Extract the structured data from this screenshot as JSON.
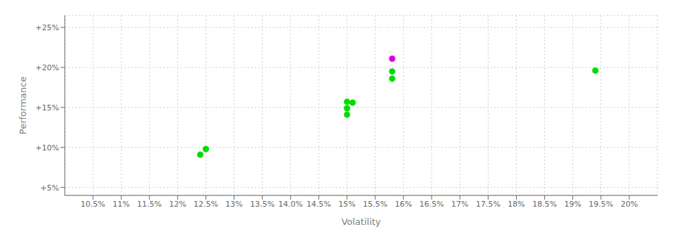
{
  "chart_data": {
    "type": "scatter",
    "xlabel": "Volatility",
    "ylabel": "Performance",
    "xlim": [
      0.1,
      0.205
    ],
    "ylim": [
      0.04,
      0.265
    ],
    "xticks": [
      {
        "value": 0.105,
        "label": "10.5%"
      },
      {
        "value": 0.11,
        "label": "11%"
      },
      {
        "value": 0.115,
        "label": "11.5%"
      },
      {
        "value": 0.12,
        "label": "12%"
      },
      {
        "value": 0.125,
        "label": "12.5%"
      },
      {
        "value": 0.13,
        "label": "13%"
      },
      {
        "value": 0.135,
        "label": "13.5%"
      },
      {
        "value": 0.14,
        "label": "14.0%"
      },
      {
        "value": 0.145,
        "label": "14.5%"
      },
      {
        "value": 0.15,
        "label": "15%"
      },
      {
        "value": 0.155,
        "label": "15.5%"
      },
      {
        "value": 0.16,
        "label": "16%"
      },
      {
        "value": 0.165,
        "label": "16.5%"
      },
      {
        "value": 0.17,
        "label": "17%"
      },
      {
        "value": 0.175,
        "label": "17.5%"
      },
      {
        "value": 0.18,
        "label": "18%"
      },
      {
        "value": 0.185,
        "label": "18.5%"
      },
      {
        "value": 0.19,
        "label": "19%"
      },
      {
        "value": 0.195,
        "label": "19.5%"
      },
      {
        "value": 0.2,
        "label": "20%"
      }
    ],
    "yticks": [
      {
        "value": 0.05,
        "label": "+5%"
      },
      {
        "value": 0.1,
        "label": "+10%"
      },
      {
        "value": 0.15,
        "label": "+15%"
      },
      {
        "value": 0.2,
        "label": "+20%"
      },
      {
        "value": 0.25,
        "label": "+25%"
      }
    ],
    "grid": true,
    "series": [
      {
        "color": "#00dd00",
        "x": [
          0.125,
          0.124,
          0.15,
          0.151,
          0.15,
          0.15,
          0.158,
          0.158,
          0.194
        ],
        "y": [
          0.098,
          0.091,
          0.157,
          0.156,
          0.149,
          0.141,
          0.195,
          0.186,
          0.196
        ]
      },
      {
        "color": "#dd00dd",
        "x": [
          0.158
        ],
        "y": [
          0.211
        ]
      }
    ]
  }
}
